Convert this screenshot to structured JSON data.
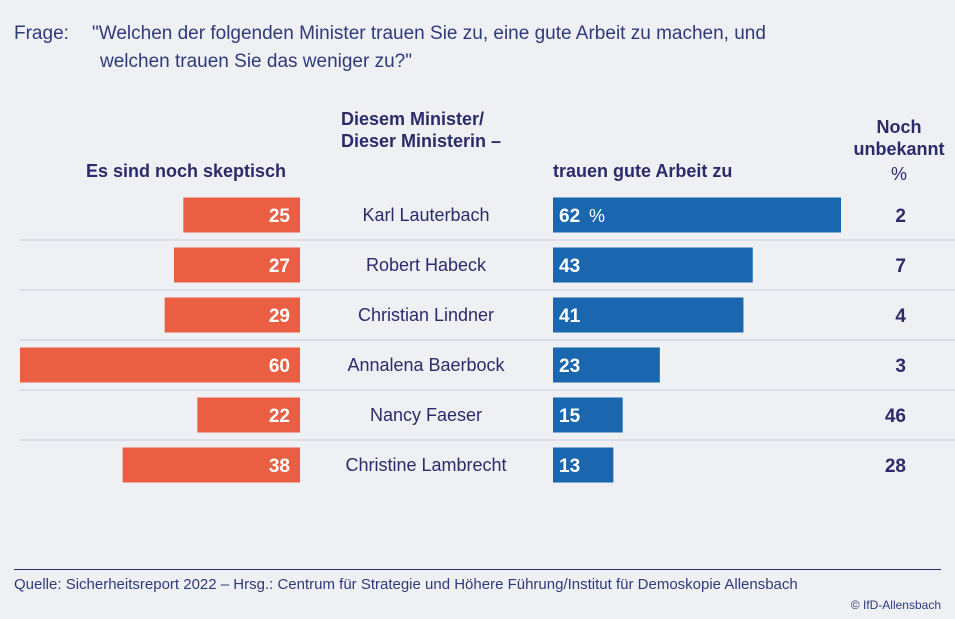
{
  "question": {
    "label": "Frage:",
    "text_line1": "\"Welchen der folgenden Minister trauen Sie zu, eine gute Arbeit zu machen, und",
    "text_line2": "welchen trauen Sie das weniger zu?\""
  },
  "headers": {
    "center_line1": "Diesem Minister/",
    "center_line2": "Dieser Ministerin –",
    "left": "Es sind noch skeptisch",
    "middle": "trauen gute Arbeit zu",
    "right_line1": "Noch",
    "right_line2": "unbekannt",
    "right_unit": "%"
  },
  "chart_data": {
    "type": "bar",
    "categories": [
      "Karl Lauterbach",
      "Robert Habeck",
      "Christian Lindner",
      "Annalena Baerbock",
      "Nancy Faeser",
      "Christine Lambrecht"
    ],
    "series": [
      {
        "name": "Es sind noch skeptisch",
        "values": [
          25,
          27,
          29,
          60,
          22,
          38
        ],
        "color": "#ea5f44"
      },
      {
        "name": "trauen gute Arbeit zu",
        "values": [
          62,
          43,
          41,
          23,
          15,
          13
        ],
        "color": "#1a67b0"
      },
      {
        "name": "Noch unbekannt",
        "values": [
          2,
          7,
          4,
          3,
          46,
          28
        ]
      }
    ],
    "first_value_suffix": "%",
    "title": "",
    "xlabel": "",
    "ylabel": ""
  },
  "footer": {
    "source": "Quelle: Sicherheitsreport 2022 – Hrsg.: Centrum für Strategie und Höhere Führung/Institut für Demoskopie Allensbach",
    "copyright": "© IfD-Allensbach"
  }
}
